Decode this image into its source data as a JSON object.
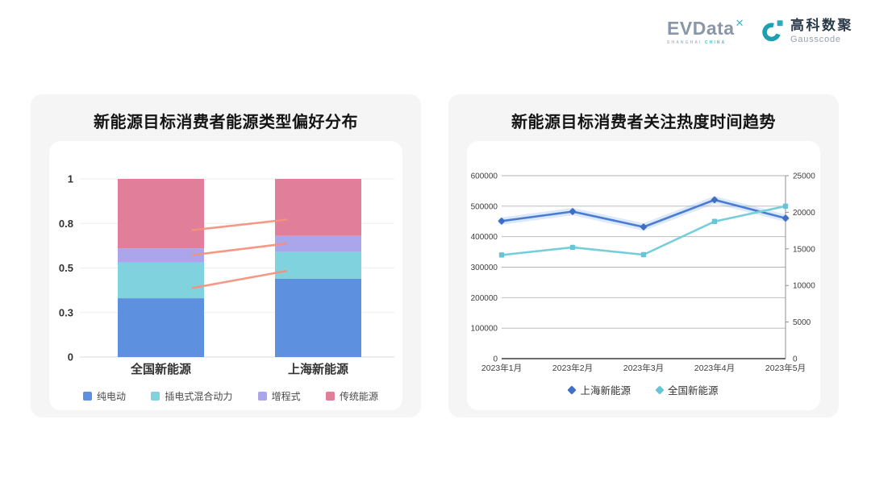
{
  "header": {
    "evdata": {
      "name": "EVData",
      "x_mark": "✕",
      "sub_1": "SHANGHAI",
      "sub_2": "CHINA"
    },
    "gausscode": {
      "cn": "高科数聚",
      "en": "Gausscode",
      "icon_color": "#1E9FB2",
      "icon_square_color": "#2FAABC"
    }
  },
  "chart_data": [
    {
      "type": "bar",
      "subtype": "stacked_percentage",
      "title": "新能源目标消费者能源类型偏好分布",
      "categories": [
        "全国新能源",
        "上海新能源"
      ],
      "series": [
        {
          "name": "纯电动",
          "color": "#5E90E0",
          "values": [
            0.33,
            0.44
          ]
        },
        {
          "name": "插电式混合动力",
          "color": "#7FD2DE",
          "values": [
            0.2,
            0.15
          ]
        },
        {
          "name": "增程式",
          "color": "#ABA5EB",
          "values": [
            0.08,
            0.09
          ]
        },
        {
          "name": "传统能源",
          "color": "#E17E99",
          "values": [
            0.39,
            0.32
          ]
        }
      ],
      "y_axis": {
        "min": 0,
        "max": 1,
        "ticks": [
          {
            "value": 0,
            "label": "0"
          },
          {
            "value": 0.25,
            "label": "0.3"
          },
          {
            "value": 0.5,
            "label": "0.5"
          },
          {
            "value": 0.75,
            "label": "0.8"
          },
          {
            "value": 1,
            "label": "1"
          }
        ]
      },
      "connector_lines": {
        "color": "#F4917B",
        "segments": [
          {
            "from": 0.713,
            "to": 0.771
          },
          {
            "from": 0.573,
            "to": 0.637
          },
          {
            "from": 0.388,
            "to": 0.483
          }
        ]
      },
      "grid": true,
      "legend_position": "bottom"
    },
    {
      "type": "line",
      "title": "新能源目标消费者关注热度时间趋势",
      "categories": [
        "2023年1月",
        "2023年2月",
        "2023年3月",
        "2023年4月",
        "2023年5月"
      ],
      "series": [
        {
          "name": "上海新能源",
          "axis": "right",
          "marker": "diamond",
          "color": "#4A7CCF",
          "marker_color": "#3E6EC5",
          "glow": true,
          "glow_color": "rgba(140,180,245,0.30)",
          "values": [
            18800,
            20100,
            18000,
            21700,
            19200
          ]
        },
        {
          "name": "全国新能源",
          "axis": "left",
          "marker": "square",
          "color": "#76CEDB",
          "marker_color": "#66C5D6",
          "glow": false,
          "glow_color": "none",
          "values": [
            340000,
            365000,
            341000,
            450000,
            500000
          ]
        }
      ],
      "left_axis": {
        "max": 600000,
        "ticks": [
          {
            "value": 0,
            "label": "0"
          },
          {
            "value": 100000,
            "label": "100000"
          },
          {
            "value": 200000,
            "label": "200000"
          },
          {
            "value": 300000,
            "label": "300000"
          },
          {
            "value": 400000,
            "label": "400000"
          },
          {
            "value": 500000,
            "label": "500000"
          },
          {
            "value": 600000,
            "label": "600000"
          }
        ]
      },
      "right_axis": {
        "max": 25000,
        "ticks": [
          {
            "value": 0,
            "label": "0"
          },
          {
            "value": 5000,
            "label": "5000"
          },
          {
            "value": 10000,
            "label": "10000"
          },
          {
            "value": 15000,
            "label": "15000"
          },
          {
            "value": 20000,
            "label": "20000"
          },
          {
            "value": 25000,
            "label": "25000"
          }
        ]
      },
      "grid": true,
      "legend_position": "bottom"
    }
  ],
  "colors": {
    "card_background": "#f5f5f6",
    "panel_background": "#ffffff",
    "grid_light": "#ededef",
    "grid_dark": "#b2b2b4",
    "axis_text": "#3c3c3c"
  }
}
